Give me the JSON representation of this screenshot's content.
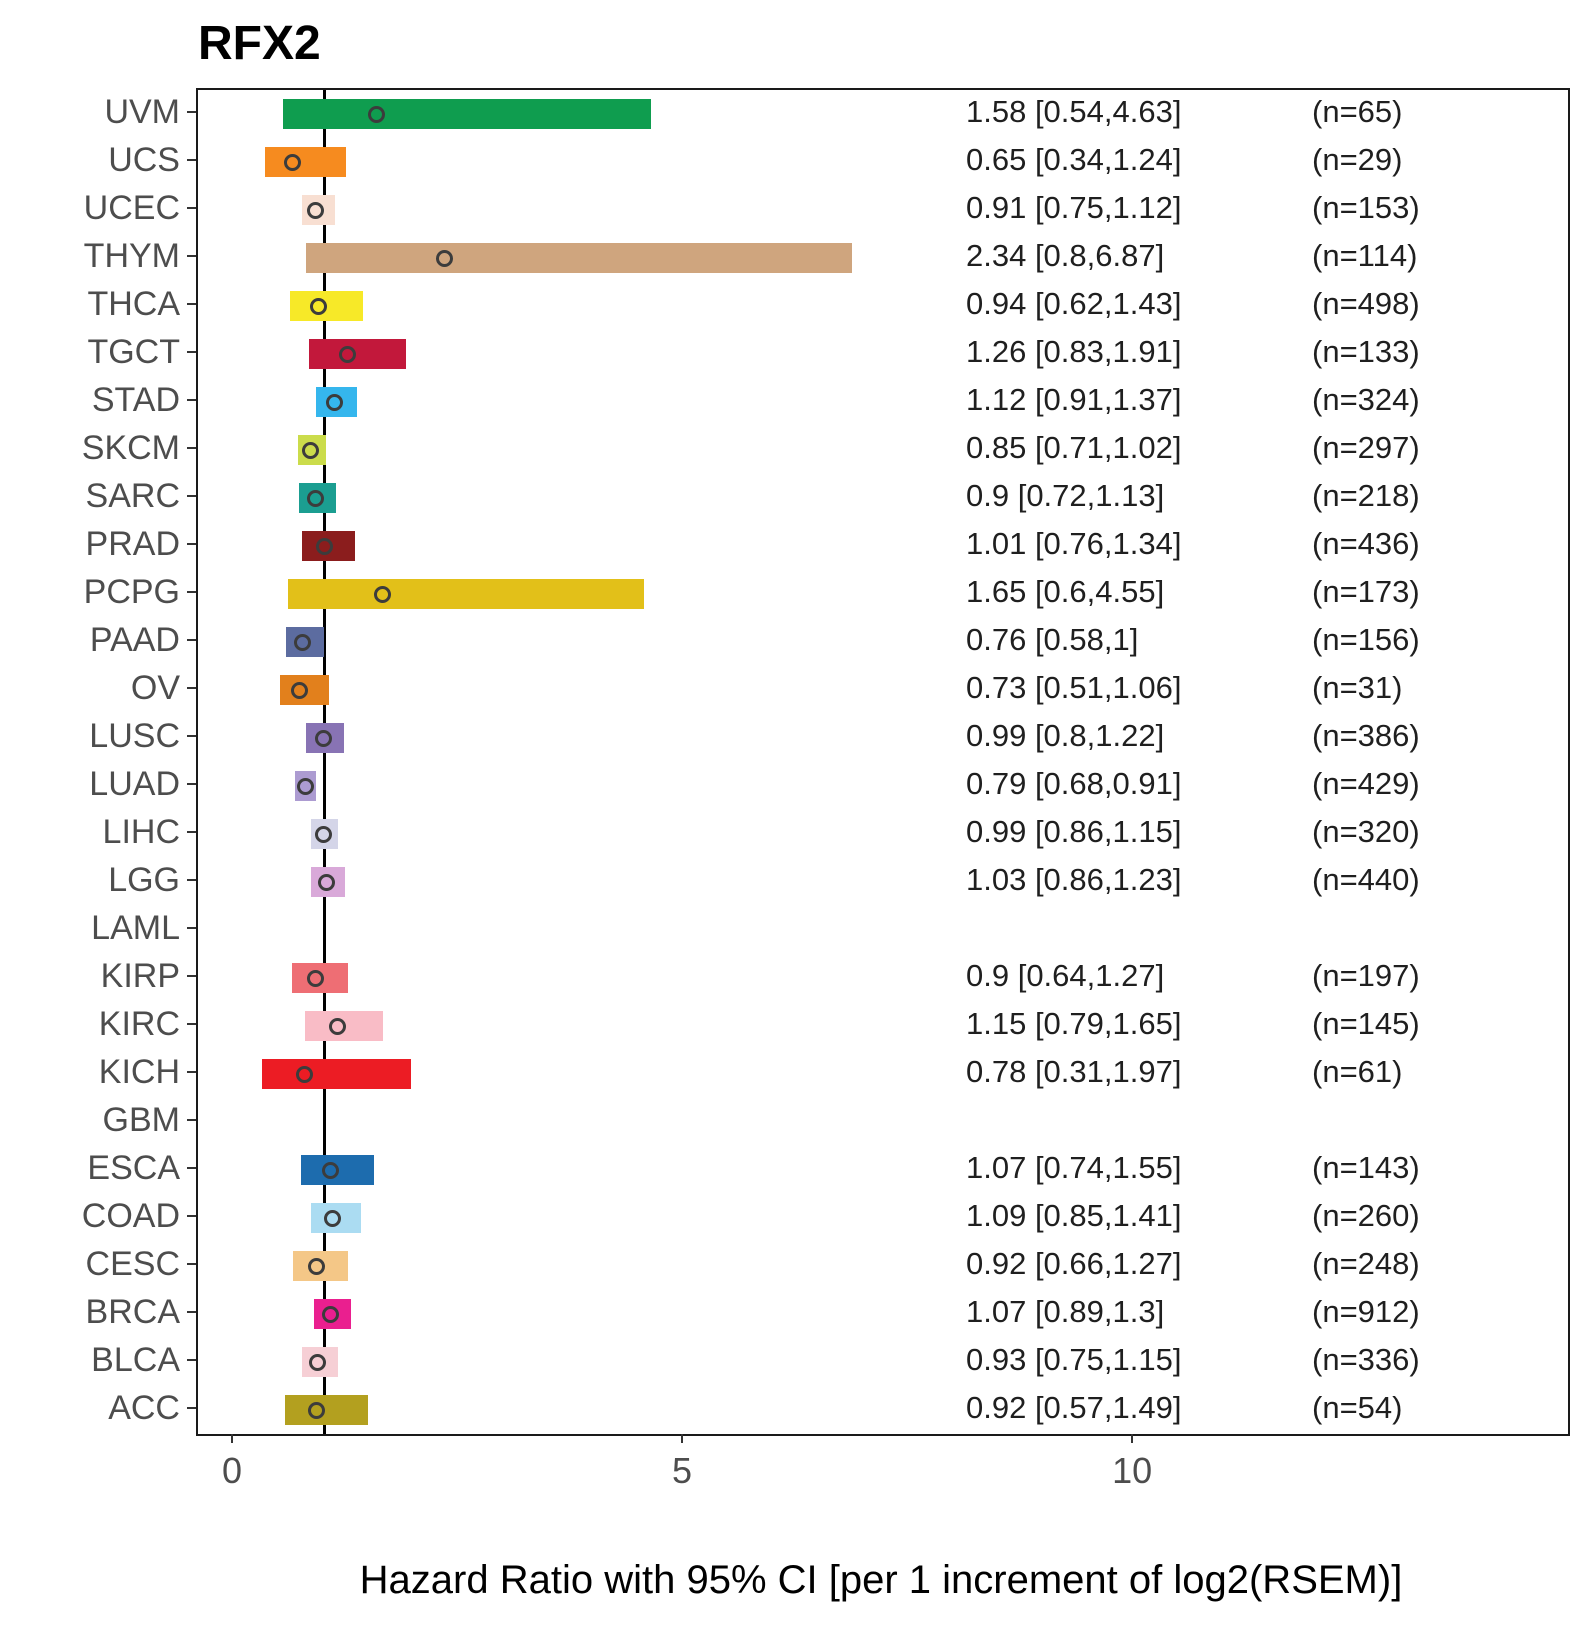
{
  "chart_data": {
    "type": "forest",
    "title": "RFX2",
    "xlabel": "Hazard Ratio with 95% CI [per 1 increment of log2(RSEM)]",
    "x_ticks": [
      0,
      5,
      10
    ],
    "xlim": [
      -0.4,
      14.82
    ],
    "ref_line": 1,
    "grid": "off",
    "legend": "none",
    "rows": [
      {
        "label": "UVM",
        "hr": 1.58,
        "lo": 0.54,
        "hi": 4.63,
        "n": 65,
        "hr_text": "1.58 [0.54,4.63]",
        "n_text": "(n=65)",
        "color": "#0f9d4f"
      },
      {
        "label": "UCS",
        "hr": 0.65,
        "lo": 0.34,
        "hi": 1.24,
        "n": 29,
        "hr_text": "0.65 [0.34,1.24]",
        "n_text": "(n=29)",
        "color": "#f68b1f"
      },
      {
        "label": "UCEC",
        "hr": 0.91,
        "lo": 0.75,
        "hi": 1.12,
        "n": 153,
        "hr_text": "0.91 [0.75,1.12]",
        "n_text": "(n=153)",
        "color": "#f8dfd2"
      },
      {
        "label": "THYM",
        "hr": 2.34,
        "lo": 0.8,
        "hi": 6.87,
        "n": 114,
        "hr_text": "2.34 [0.8,6.87]",
        "n_text": "(n=114)",
        "color": "#cfa57e"
      },
      {
        "label": "THCA",
        "hr": 0.94,
        "lo": 0.62,
        "hi": 1.43,
        "n": 498,
        "hr_text": "0.94 [0.62,1.43]",
        "n_text": "(n=498)",
        "color": "#f7e928"
      },
      {
        "label": "TGCT",
        "hr": 1.26,
        "lo": 0.83,
        "hi": 1.91,
        "n": 133,
        "hr_text": "1.26 [0.83,1.91]",
        "n_text": "(n=133)",
        "color": "#c2183b"
      },
      {
        "label": "STAD",
        "hr": 1.12,
        "lo": 0.91,
        "hi": 1.37,
        "n": 324,
        "hr_text": "1.12 [0.91,1.37]",
        "n_text": "(n=324)",
        "color": "#35b6ed"
      },
      {
        "label": "SKCM",
        "hr": 0.85,
        "lo": 0.71,
        "hi": 1.02,
        "n": 297,
        "hr_text": "0.85 [0.71,1.02]",
        "n_text": "(n=297)",
        "color": "#cbdc4b"
      },
      {
        "label": "SARC",
        "hr": 0.9,
        "lo": 0.72,
        "hi": 1.13,
        "n": 218,
        "hr_text": "0.9 [0.72,1.13]",
        "n_text": "(n=218)",
        "color": "#1b9e91"
      },
      {
        "label": "PRAD",
        "hr": 1.01,
        "lo": 0.76,
        "hi": 1.34,
        "n": 436,
        "hr_text": "1.01 [0.76,1.34]",
        "n_text": "(n=436)",
        "color": "#8b1d1d"
      },
      {
        "label": "PCPG",
        "hr": 1.65,
        "lo": 0.6,
        "hi": 4.55,
        "n": 173,
        "hr_text": "1.65 [0.6,4.55]",
        "n_text": "(n=173)",
        "color": "#e2c019"
      },
      {
        "label": "PAAD",
        "hr": 0.76,
        "lo": 0.58,
        "hi": 1.0,
        "n": 156,
        "hr_text": "0.76 [0.58,1]",
        "n_text": "(n=156)",
        "color": "#5c6ca0"
      },
      {
        "label": "OV",
        "hr": 0.73,
        "lo": 0.51,
        "hi": 1.06,
        "n": 31,
        "hr_text": "0.73 [0.51,1.06]",
        "n_text": "(n=31)",
        "color": "#e2801c"
      },
      {
        "label": "LUSC",
        "hr": 0.99,
        "lo": 0.8,
        "hi": 1.22,
        "n": 386,
        "hr_text": "0.99 [0.8,1.22]",
        "n_text": "(n=386)",
        "color": "#8873b4"
      },
      {
        "label": "LUAD",
        "hr": 0.79,
        "lo": 0.68,
        "hi": 0.91,
        "n": 429,
        "hr_text": "0.79 [0.68,0.91]",
        "n_text": "(n=429)",
        "color": "#ac9bd1"
      },
      {
        "label": "LIHC",
        "hr": 0.99,
        "lo": 0.86,
        "hi": 1.15,
        "n": 320,
        "hr_text": "0.99 [0.86,1.15]",
        "n_text": "(n=320)",
        "color": "#d4d5e8"
      },
      {
        "label": "LGG",
        "hr": 1.03,
        "lo": 0.86,
        "hi": 1.23,
        "n": 440,
        "hr_text": "1.03 [0.86,1.23]",
        "n_text": "(n=440)",
        "color": "#d9a9d9"
      },
      {
        "label": "LAML",
        "hr": null,
        "lo": null,
        "hi": null,
        "n": null,
        "hr_text": "",
        "n_text": "",
        "color": null
      },
      {
        "label": "KIRP",
        "hr": 0.9,
        "lo": 0.64,
        "hi": 1.27,
        "n": 197,
        "hr_text": "0.9 [0.64,1.27]",
        "n_text": "(n=197)",
        "color": "#ee6e74"
      },
      {
        "label": "KIRC",
        "hr": 1.15,
        "lo": 0.79,
        "hi": 1.65,
        "n": 145,
        "hr_text": "1.15 [0.79,1.65]",
        "n_text": "(n=145)",
        "color": "#f9bcc6"
      },
      {
        "label": "KICH",
        "hr": 0.78,
        "lo": 0.31,
        "hi": 1.97,
        "n": 61,
        "hr_text": "0.78 [0.31,1.97]",
        "n_text": "(n=61)",
        "color": "#ec1c24"
      },
      {
        "label": "GBM",
        "hr": null,
        "lo": null,
        "hi": null,
        "n": null,
        "hr_text": "",
        "n_text": "",
        "color": null
      },
      {
        "label": "ESCA",
        "hr": 1.07,
        "lo": 0.74,
        "hi": 1.55,
        "n": 143,
        "hr_text": "1.07 [0.74,1.55]",
        "n_text": "(n=143)",
        "color": "#1d6cae"
      },
      {
        "label": "COAD",
        "hr": 1.09,
        "lo": 0.85,
        "hi": 1.41,
        "n": 260,
        "hr_text": "1.09 [0.85,1.41]",
        "n_text": "(n=260)",
        "color": "#abdcf2"
      },
      {
        "label": "CESC",
        "hr": 0.92,
        "lo": 0.66,
        "hi": 1.27,
        "n": 248,
        "hr_text": "0.92 [0.66,1.27]",
        "n_text": "(n=248)",
        "color": "#f4c787"
      },
      {
        "label": "BRCA",
        "hr": 1.07,
        "lo": 0.89,
        "hi": 1.3,
        "n": 912,
        "hr_text": "1.07 [0.89,1.3]",
        "n_text": "(n=912)",
        "color": "#ea1f8f"
      },
      {
        "label": "BLCA",
        "hr": 0.93,
        "lo": 0.75,
        "hi": 1.15,
        "n": 336,
        "hr_text": "0.93 [0.75,1.15]",
        "n_text": "(n=336)",
        "color": "#f6cfd5"
      },
      {
        "label": "ACC",
        "hr": 0.92,
        "lo": 0.57,
        "hi": 1.49,
        "n": 54,
        "hr_text": "0.92 [0.57,1.49]",
        "n_text": "(n=54)",
        "color": "#b3a01f"
      }
    ]
  }
}
